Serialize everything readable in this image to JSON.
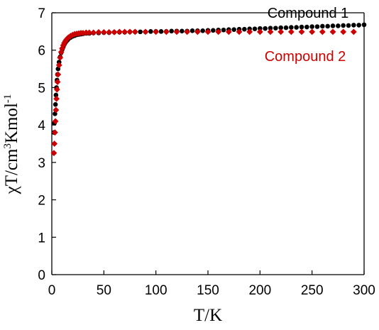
{
  "chart_data": {
    "type": "scatter",
    "title": "",
    "xlabel": "T/K",
    "ylabel_parts": {
      "chi": "χT",
      "sep": "/cm",
      "sup1": "3",
      "mid": "Kmol",
      "sup2": "-1"
    },
    "xlim": [
      0,
      300
    ],
    "ylim": [
      0,
      7
    ],
    "xticks": [
      0,
      50,
      100,
      150,
      200,
      250,
      300
    ],
    "yticks": [
      0,
      1,
      2,
      3,
      4,
      5,
      6,
      7
    ],
    "grid": false,
    "legend_placement": "top-right",
    "series": [
      {
        "name": "Compound 1",
        "color": "#000000",
        "marker": "circle",
        "points": [
          [
            2,
            3.8
          ],
          [
            2.5,
            4.05
          ],
          [
            3,
            4.3
          ],
          [
            3.5,
            4.55
          ],
          [
            4,
            4.8
          ],
          [
            4.5,
            5.0
          ],
          [
            5,
            5.2
          ],
          [
            5.5,
            5.35
          ],
          [
            6,
            5.5
          ],
          [
            7,
            5.68
          ],
          [
            8,
            5.82
          ],
          [
            9,
            5.93
          ],
          [
            10,
            6.02
          ],
          [
            11,
            6.09
          ],
          [
            12,
            6.15
          ],
          [
            13,
            6.2
          ],
          [
            14,
            6.24
          ],
          [
            15,
            6.27
          ],
          [
            16,
            6.3
          ],
          [
            18,
            6.34
          ],
          [
            20,
            6.37
          ],
          [
            22,
            6.39
          ],
          [
            24,
            6.41
          ],
          [
            26,
            6.42
          ],
          [
            28,
            6.43
          ],
          [
            30,
            6.44
          ],
          [
            33,
            6.45
          ],
          [
            36,
            6.45
          ],
          [
            40,
            6.46
          ],
          [
            45,
            6.46
          ],
          [
            50,
            6.47
          ],
          [
            55,
            6.47
          ],
          [
            60,
            6.48
          ],
          [
            65,
            6.48
          ],
          [
            70,
            6.48
          ],
          [
            75,
            6.49
          ],
          [
            80,
            6.49
          ],
          [
            85,
            6.49
          ],
          [
            90,
            6.49
          ],
          [
            95,
            6.5
          ],
          [
            100,
            6.5
          ],
          [
            105,
            6.5
          ],
          [
            110,
            6.5
          ],
          [
            115,
            6.51
          ],
          [
            120,
            6.51
          ],
          [
            125,
            6.51
          ],
          [
            130,
            6.51
          ],
          [
            135,
            6.52
          ],
          [
            140,
            6.52
          ],
          [
            145,
            6.52
          ],
          [
            150,
            6.53
          ],
          [
            155,
            6.53
          ],
          [
            160,
            6.54
          ],
          [
            165,
            6.54
          ],
          [
            170,
            6.55
          ],
          [
            175,
            6.55
          ],
          [
            180,
            6.56
          ],
          [
            185,
            6.56
          ],
          [
            190,
            6.57
          ],
          [
            195,
            6.57
          ],
          [
            200,
            6.58
          ],
          [
            205,
            6.58
          ],
          [
            210,
            6.59
          ],
          [
            215,
            6.59
          ],
          [
            220,
            6.6
          ],
          [
            225,
            6.6
          ],
          [
            230,
            6.61
          ],
          [
            235,
            6.61
          ],
          [
            240,
            6.62
          ],
          [
            245,
            6.62
          ],
          [
            250,
            6.63
          ],
          [
            255,
            6.63
          ],
          [
            260,
            6.64
          ],
          [
            265,
            6.64
          ],
          [
            270,
            6.65
          ],
          [
            275,
            6.65
          ],
          [
            280,
            6.66
          ],
          [
            285,
            6.66
          ],
          [
            290,
            6.67
          ],
          [
            295,
            6.67
          ],
          [
            300,
            6.68
          ]
        ]
      },
      {
        "name": "Compound 2",
        "color": "#cc0000",
        "marker": "diamond",
        "points": [
          [
            2,
            3.25
          ],
          [
            2.5,
            3.5
          ],
          [
            3,
            3.8
          ],
          [
            3.5,
            4.1
          ],
          [
            4,
            4.4
          ],
          [
            4.5,
            4.7
          ],
          [
            5,
            4.95
          ],
          [
            5.5,
            5.15
          ],
          [
            6,
            5.35
          ],
          [
            7,
            5.6
          ],
          [
            8,
            5.8
          ],
          [
            9,
            5.95
          ],
          [
            10,
            6.05
          ],
          [
            11,
            6.13
          ],
          [
            12,
            6.19
          ],
          [
            13,
            6.24
          ],
          [
            14,
            6.28
          ],
          [
            15,
            6.31
          ],
          [
            16,
            6.34
          ],
          [
            18,
            6.38
          ],
          [
            20,
            6.41
          ],
          [
            22,
            6.43
          ],
          [
            24,
            6.44
          ],
          [
            26,
            6.45
          ],
          [
            28,
            6.46
          ],
          [
            30,
            6.46
          ],
          [
            33,
            6.47
          ],
          [
            36,
            6.47
          ],
          [
            40,
            6.47
          ],
          [
            45,
            6.48
          ],
          [
            50,
            6.48
          ],
          [
            55,
            6.48
          ],
          [
            60,
            6.48
          ],
          [
            65,
            6.49
          ],
          [
            70,
            6.49
          ],
          [
            75,
            6.49
          ],
          [
            80,
            6.49
          ],
          [
            90,
            6.49
          ],
          [
            100,
            6.49
          ],
          [
            110,
            6.49
          ],
          [
            120,
            6.49
          ],
          [
            130,
            6.49
          ],
          [
            140,
            6.49
          ],
          [
            150,
            6.49
          ],
          [
            160,
            6.49
          ],
          [
            170,
            6.49
          ],
          [
            180,
            6.49
          ],
          [
            190,
            6.49
          ],
          [
            200,
            6.49
          ],
          [
            210,
            6.49
          ],
          [
            220,
            6.49
          ],
          [
            230,
            6.49
          ],
          [
            240,
            6.49
          ],
          [
            250,
            6.49
          ],
          [
            260,
            6.49
          ],
          [
            270,
            6.49
          ],
          [
            280,
            6.49
          ],
          [
            290,
            6.49
          ]
        ]
      }
    ]
  }
}
